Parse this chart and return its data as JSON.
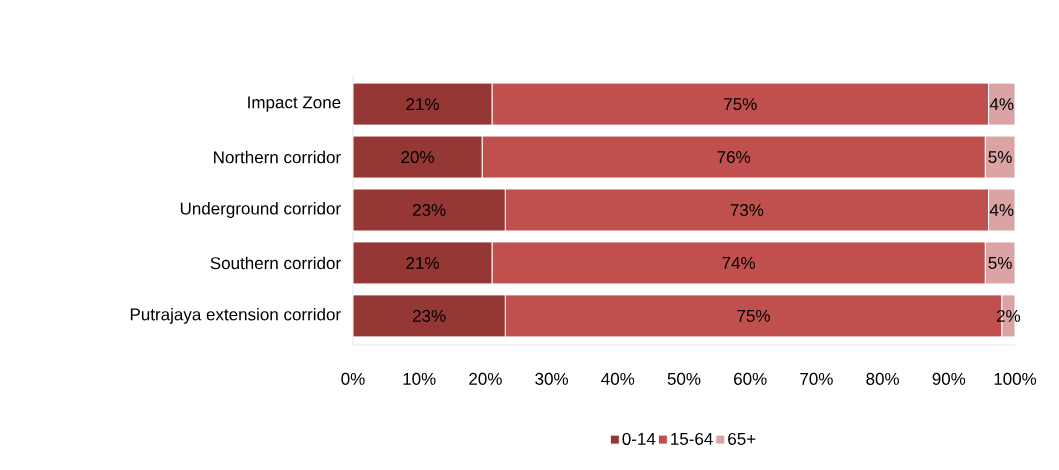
{
  "chart_data": {
    "type": "bar",
    "orientation": "horizontal",
    "stacked": true,
    "categories": [
      "Impact Zone",
      "Northern corridor",
      "Underground corridor",
      "Southern corridor",
      "Putrajaya extension corridor"
    ],
    "series": [
      {
        "name": "0-14",
        "color": "#953735",
        "values": [
          21,
          19.5,
          23,
          21,
          23
        ],
        "value_labels": [
          "21%",
          "20%",
          "23%",
          "21%",
          "23%"
        ]
      },
      {
        "name": "15-64",
        "color": "#c0504d",
        "values": [
          75,
          76,
          73,
          74.5,
          75
        ],
        "value_labels": [
          "75%",
          "76%",
          "73%",
          "74%",
          "75%"
        ]
      },
      {
        "name": "65+",
        "color": "#dba3a3",
        "values": [
          4,
          4.5,
          4,
          4.5,
          2
        ],
        "value_labels": [
          "4%",
          "5%",
          "4%",
          "5%",
          "2%"
        ]
      }
    ],
    "xlim": [
      0,
      100
    ],
    "xticks": [
      {
        "value": 0,
        "label": "0%"
      },
      {
        "value": 10,
        "label": "10%"
      },
      {
        "value": 20,
        "label": "20%"
      },
      {
        "value": 30,
        "label": "30%"
      },
      {
        "value": 40,
        "label": "40%"
      },
      {
        "value": 50,
        "label": "50%"
      },
      {
        "value": 60,
        "label": "60%"
      },
      {
        "value": 70,
        "label": "70%"
      },
      {
        "value": 80,
        "label": "80%"
      },
      {
        "value": 90,
        "label": "90%"
      },
      {
        "value": 100,
        "label": "100%"
      }
    ],
    "grid": false,
    "legend": "bottom"
  }
}
